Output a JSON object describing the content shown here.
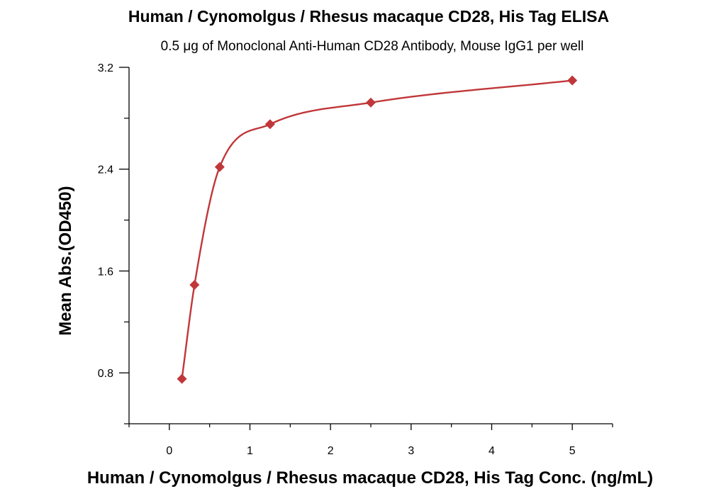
{
  "chart_data": {
    "type": "scatter",
    "title": "Human / Cynomolgus / Rhesus macaque CD28, His Tag ELISA",
    "subtitle": "0.5 μg of Monoclonal Anti-Human CD28 Antibody, Mouse IgG1 per well",
    "xlabel": "Human / Cynomolgus / Rhesus macaque CD28, His Tag Conc. (ng/mL)",
    "ylabel": "Mean Abs.(OD450)",
    "xlim": [
      -0.5,
      5.5
    ],
    "ylim": [
      0.4,
      3.2
    ],
    "x_ticks": [
      0,
      1,
      2,
      3,
      4,
      5
    ],
    "x_tick_labels": [
      "0",
      "1",
      "2",
      "3",
      "4",
      "5"
    ],
    "y_ticks": [
      0.8,
      1.6,
      2.4,
      3.2
    ],
    "y_tick_labels": [
      "0.8",
      "1.6",
      "2.4",
      "3.2"
    ],
    "grid": false,
    "series": [
      {
        "x": [
          0.156,
          0.3125,
          0.625,
          1.25,
          2.5,
          5.0
        ],
        "y": [
          0.753,
          1.491,
          2.417,
          2.753,
          2.923,
          3.097
        ],
        "marker": "diamond",
        "color": "#c0373a",
        "fit_curve": true
      }
    ]
  }
}
